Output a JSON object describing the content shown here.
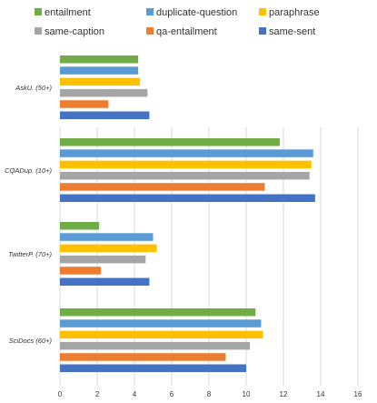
{
  "chart_data": {
    "type": "bar",
    "orientation": "horizontal",
    "categories": [
      "AskU. (50+)",
      "CQADup. (10+)",
      "TwitterP. (70+)",
      "SciDocs (60+)"
    ],
    "series": [
      {
        "name": "entailment",
        "color": "#70ad47",
        "values": [
          4.2,
          11.8,
          2.1,
          10.5
        ]
      },
      {
        "name": "duplicate-question",
        "color": "#5b9bd5",
        "values": [
          4.2,
          13.6,
          5.0,
          10.8
        ]
      },
      {
        "name": "paraphrase",
        "color": "#ffc000",
        "values": [
          4.3,
          13.5,
          5.2,
          10.9
        ]
      },
      {
        "name": "same-caption",
        "color": "#a5a5a5",
        "values": [
          4.7,
          13.4,
          4.6,
          10.2
        ]
      },
      {
        "name": "qa-entailment",
        "color": "#ed7d31",
        "values": [
          2.6,
          11.0,
          2.2,
          8.9
        ]
      },
      {
        "name": "same-sent",
        "color": "#4472c4",
        "values": [
          4.8,
          13.7,
          4.8,
          10.0
        ]
      }
    ],
    "xlim": [
      0,
      16
    ],
    "xticks": [
      0,
      2,
      4,
      6,
      8,
      10,
      12,
      14,
      16
    ],
    "title": "",
    "xlabel": "",
    "ylabel": "",
    "grid": true,
    "legend_position": "top"
  }
}
